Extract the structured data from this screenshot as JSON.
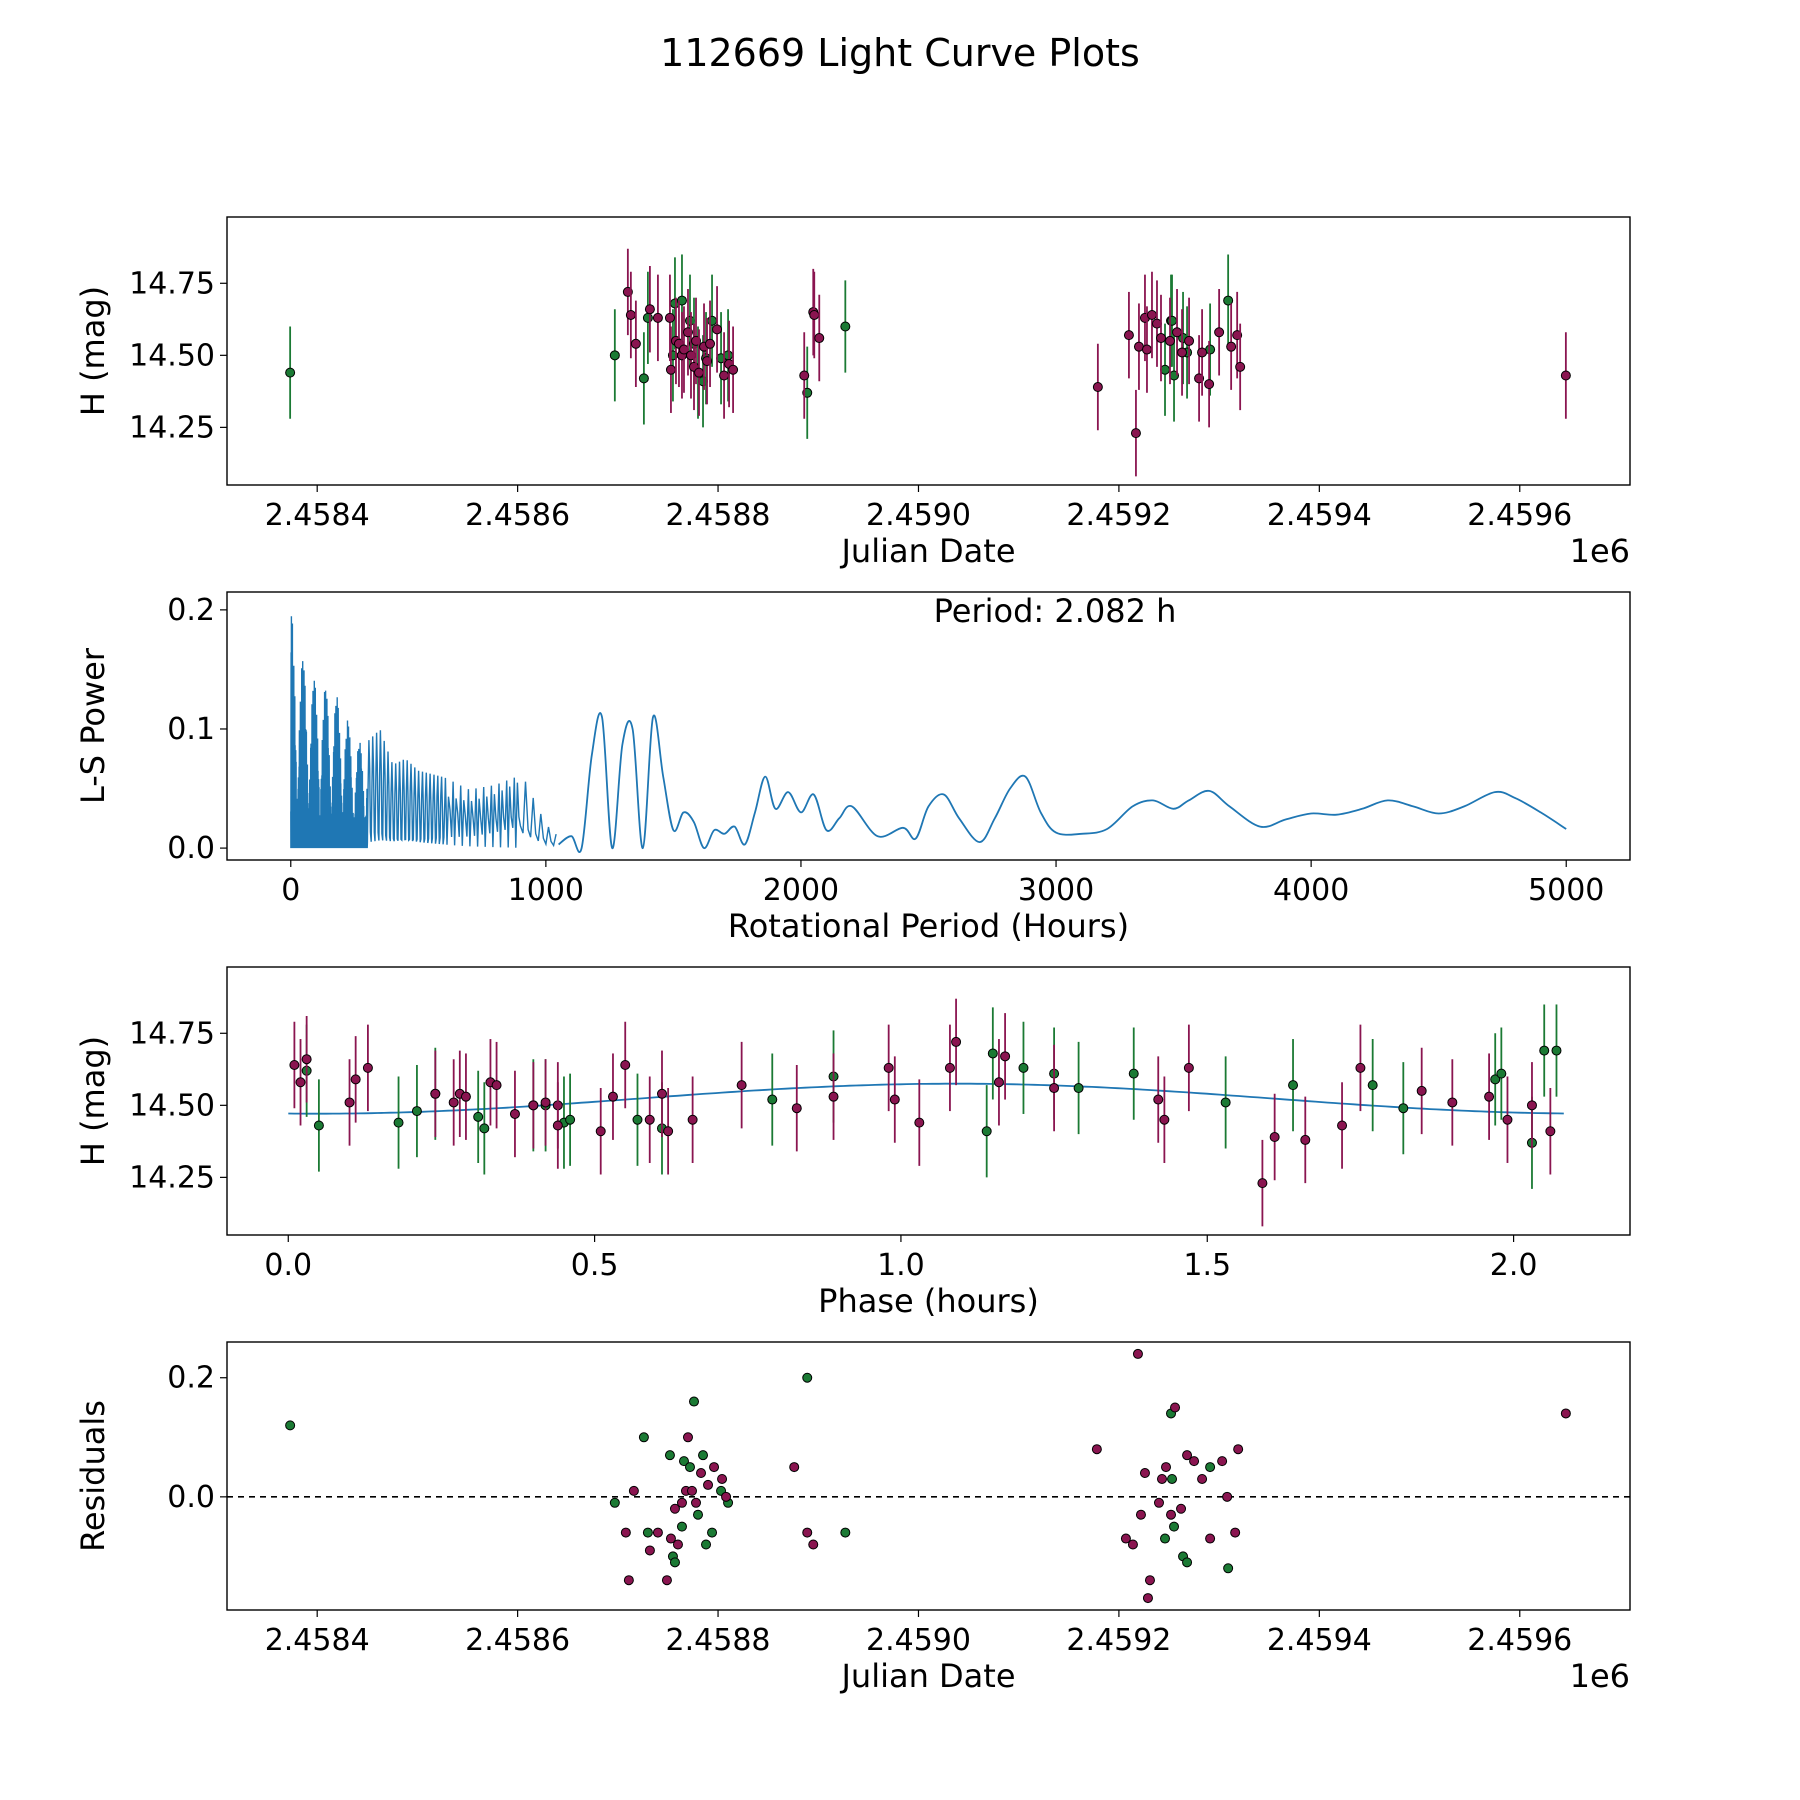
{
  "figure": {
    "title": "112669 Light Curve Plots"
  },
  "colors": {
    "green": "#1b7a34",
    "magenta": "#8a1550",
    "line": "#1f77b4",
    "axis": "#000000"
  },
  "chart_data": [
    {
      "id": "lightcurve",
      "type": "scatter",
      "xlabel": "Julian Date",
      "ylabel": "H (mag)",
      "offset_label": "1e6",
      "xlim": [
        2.45831,
        2.45971
      ],
      "ylim": [
        14.05,
        14.98
      ],
      "xticks": [
        2.4584,
        2.4586,
        2.4588,
        2.459,
        2.4592,
        2.4594,
        2.4596
      ],
      "xtick_labels": [
        "2.4584",
        "2.4586",
        "2.4588",
        "2.4590",
        "2.4592",
        "2.4594",
        "2.4596"
      ],
      "yticks": [
        14.25,
        14.5,
        14.75
      ],
      "ytick_labels": [
        "14.25",
        "14.50",
        "14.75"
      ],
      "series": [
        {
          "name": "green",
          "error": 0.16,
          "x": [
            2.458373,
            2.458697,
            2.458726,
            2.45873,
            2.458755,
            2.458757,
            2.458764,
            2.458772,
            2.458776,
            2.45878,
            2.458785,
            2.458788,
            2.458794,
            2.458803,
            2.45881,
            2.458889,
            2.458927,
            2.459246,
            2.459252,
            2.459253,
            2.459255,
            2.459264,
            2.459268,
            2.459291,
            2.459309
          ],
          "y": [
            14.44,
            14.5,
            14.42,
            14.63,
            14.5,
            14.68,
            14.69,
            14.62,
            14.54,
            14.44,
            14.41,
            14.49,
            14.62,
            14.49,
            14.5,
            14.37,
            14.6,
            14.45,
            14.62,
            14.62,
            14.43,
            14.56,
            14.51,
            14.52,
            14.69
          ]
        },
        {
          "name": "magenta",
          "error": 0.15,
          "x": [
            2.45871,
            2.458713,
            2.458718,
            2.458732,
            2.45874,
            2.458752,
            2.458753,
            2.458758,
            2.458761,
            2.458764,
            2.458766,
            2.45877,
            2.458773,
            2.458776,
            2.458778,
            2.458781,
            2.458786,
            2.458789,
            2.458792,
            2.458799,
            2.458806,
            2.458811,
            2.458815,
            2.458886,
            2.458895,
            2.458896,
            2.458901,
            2.459179,
            2.45921,
            2.459217,
            2.45922,
            2.459226,
            2.459228,
            2.459233,
            2.459238,
            2.459242,
            2.459251,
            2.459258,
            2.459263,
            2.45927,
            2.45928,
            2.459283,
            2.45929,
            2.4593,
            2.459312,
            2.459318,
            2.459321,
            2.459646
          ],
          "y": [
            14.72,
            14.64,
            14.54,
            14.66,
            14.63,
            14.63,
            14.45,
            14.55,
            14.54,
            14.5,
            14.52,
            14.58,
            14.5,
            14.46,
            14.55,
            14.44,
            14.53,
            14.48,
            14.54,
            14.59,
            14.43,
            14.47,
            14.45,
            14.43,
            14.65,
            14.64,
            14.56,
            14.39,
            14.57,
            14.23,
            14.53,
            14.63,
            14.52,
            14.64,
            14.61,
            14.56,
            14.55,
            14.58,
            14.51,
            14.55,
            14.42,
            14.51,
            14.4,
            14.58,
            14.53,
            14.57,
            14.46,
            14.43
          ]
        }
      ]
    },
    {
      "id": "periodogram",
      "type": "line",
      "xlabel": "Rotational Period (Hours)",
      "ylabel": "L-S Power",
      "annotation": "Period: 2.082 h",
      "xlim": [
        -250,
        5250
      ],
      "ylim": [
        -0.01,
        0.215
      ],
      "xticks": [
        0,
        1000,
        2000,
        3000,
        4000,
        5000
      ],
      "xtick_labels": [
        "0",
        "1000",
        "2000",
        "3000",
        "4000",
        "5000"
      ],
      "yticks": [
        0.0,
        0.1,
        0.2
      ],
      "ytick_labels": [
        "0.0",
        "0.1",
        "0.2"
      ],
      "envelope": {
        "x": [
          0,
          20,
          50,
          100,
          150,
          200,
          250,
          300,
          350,
          400,
          450,
          500,
          600,
          700,
          800,
          900,
          1000,
          1050
        ],
        "y": [
          0.205,
          0.17,
          0.16,
          0.14,
          0.135,
          0.125,
          0.09,
          0.09,
          0.1,
          0.07,
          0.075,
          0.065,
          0.06,
          0.05,
          0.055,
          0.065,
          0.02,
          0.01
        ]
      },
      "smooth": {
        "x": [
          1050,
          1100,
          1140,
          1180,
          1220,
          1260,
          1300,
          1340,
          1380,
          1420,
          1460,
          1500,
          1540,
          1580,
          1620,
          1660,
          1700,
          1740,
          1780,
          1820,
          1860,
          1900,
          1950,
          2000,
          2050,
          2100,
          2150,
          2200,
          2300,
          2400,
          2450,
          2500,
          2560,
          2620,
          2700,
          2760,
          2820,
          2880,
          2940,
          3000,
          3100,
          3200,
          3300,
          3380,
          3460,
          3520,
          3600,
          3680,
          3800,
          3900,
          4000,
          4100,
          4200,
          4300,
          4400,
          4500,
          4600,
          4720,
          4800,
          4900,
          5000
        ],
        "y": [
          0.003,
          0.01,
          0.0,
          0.078,
          0.11,
          0.0,
          0.087,
          0.1,
          0.0,
          0.11,
          0.06,
          0.015,
          0.03,
          0.022,
          0.0,
          0.015,
          0.012,
          0.018,
          0.003,
          0.03,
          0.06,
          0.033,
          0.047,
          0.03,
          0.045,
          0.015,
          0.025,
          0.035,
          0.01,
          0.017,
          0.008,
          0.035,
          0.045,
          0.025,
          0.005,
          0.025,
          0.05,
          0.06,
          0.03,
          0.013,
          0.012,
          0.016,
          0.035,
          0.04,
          0.033,
          0.04,
          0.048,
          0.035,
          0.018,
          0.024,
          0.029,
          0.028,
          0.033,
          0.04,
          0.035,
          0.029,
          0.035,
          0.047,
          0.042,
          0.03,
          0.016
        ]
      }
    },
    {
      "id": "phased",
      "type": "scatter",
      "xlabel": "Phase (hours)",
      "ylabel": "H (mag)",
      "xlim": [
        -0.1,
        2.19
      ],
      "ylim": [
        14.05,
        14.98
      ],
      "xticks": [
        0.0,
        0.5,
        1.0,
        1.5,
        2.0
      ],
      "xtick_labels": [
        "0.0",
        "0.5",
        "1.0",
        "1.5",
        "2.0"
      ],
      "yticks": [
        14.25,
        14.5,
        14.75
      ],
      "ytick_labels": [
        "14.25",
        "14.50",
        "14.75"
      ],
      "fit": {
        "mean": 14.523,
        "amplitude": 0.052,
        "peak_phase": 1.09,
        "period": 2.082
      },
      "series": [
        {
          "name": "green",
          "error": 0.16,
          "x": [
            0.03,
            0.05,
            0.18,
            0.21,
            0.24,
            0.31,
            0.32,
            0.4,
            0.42,
            0.45,
            0.46,
            0.57,
            0.61,
            0.79,
            0.89,
            1.14,
            1.15,
            1.2,
            1.25,
            1.29,
            1.38,
            1.53,
            1.64,
            1.77,
            1.82,
            1.97,
            1.98,
            2.03,
            2.05,
            2.07
          ],
          "y": [
            14.62,
            14.43,
            14.44,
            14.48,
            14.54,
            14.46,
            14.42,
            14.5,
            14.5,
            14.44,
            14.45,
            14.45,
            14.42,
            14.52,
            14.6,
            14.41,
            14.68,
            14.63,
            14.61,
            14.56,
            14.61,
            14.51,
            14.57,
            14.57,
            14.49,
            14.59,
            14.61,
            14.37,
            14.69,
            14.69
          ]
        },
        {
          "name": "magenta",
          "error": 0.15,
          "x": [
            0.01,
            0.02,
            0.03,
            0.1,
            0.11,
            0.13,
            0.24,
            0.27,
            0.28,
            0.29,
            0.33,
            0.34,
            0.37,
            0.4,
            0.42,
            0.44,
            0.44,
            0.51,
            0.53,
            0.55,
            0.59,
            0.61,
            0.62,
            0.66,
            0.74,
            0.83,
            0.89,
            0.98,
            0.99,
            1.03,
            1.08,
            1.09,
            1.16,
            1.17,
            1.25,
            1.42,
            1.43,
            1.47,
            1.59,
            1.61,
            1.66,
            1.72,
            1.75,
            1.85,
            1.9,
            1.96,
            1.99,
            2.03,
            2.06
          ],
          "y": [
            14.64,
            14.58,
            14.66,
            14.51,
            14.59,
            14.63,
            14.54,
            14.51,
            14.54,
            14.53,
            14.58,
            14.57,
            14.47,
            14.5,
            14.51,
            14.5,
            14.43,
            14.41,
            14.53,
            14.64,
            14.45,
            14.54,
            14.41,
            14.45,
            14.57,
            14.49,
            14.53,
            14.63,
            14.52,
            14.44,
            14.63,
            14.72,
            14.58,
            14.67,
            14.56,
            14.52,
            14.45,
            14.63,
            14.23,
            14.39,
            14.38,
            14.43,
            14.63,
            14.55,
            14.51,
            14.53,
            14.45,
            14.5,
            14.41
          ]
        }
      ]
    },
    {
      "id": "residuals",
      "type": "scatter",
      "xlabel": "Julian Date",
      "ylabel": "Residuals",
      "offset_label": "1e6",
      "xlim": [
        2.45831,
        2.45971
      ],
      "ylim": [
        -0.19,
        0.26
      ],
      "xticks": [
        2.4584,
        2.4586,
        2.4588,
        2.459,
        2.4592,
        2.4594,
        2.4596
      ],
      "xtick_labels": [
        "2.4584",
        "2.4586",
        "2.4588",
        "2.4590",
        "2.4592",
        "2.4594",
        "2.4596"
      ],
      "yticks": [
        0.0,
        0.2
      ],
      "ytick_labels": [
        "0.0",
        "0.2"
      ],
      "zero_line": 0.0,
      "series": [
        {
          "name": "green",
          "error": 0,
          "x": [
            2.458373,
            2.458697,
            2.458726,
            2.45873,
            2.458752,
            2.458755,
            2.458757,
            2.458764,
            2.458766,
            2.458772,
            2.458776,
            2.45878,
            2.458785,
            2.458788,
            2.458794,
            2.458803,
            2.45881,
            2.458889,
            2.458927,
            2.459246,
            2.459252,
            2.459253,
            2.459255,
            2.459264,
            2.459268,
            2.459291,
            2.459309
          ],
          "y": [
            0.12,
            -0.01,
            0.1,
            -0.06,
            0.07,
            -0.1,
            -0.11,
            -0.05,
            0.06,
            0.05,
            0.16,
            -0.03,
            0.07,
            -0.08,
            -0.06,
            0.01,
            -0.01,
            0.2,
            -0.06,
            -0.07,
            0.14,
            0.03,
            -0.05,
            -0.1,
            -0.11,
            0.05,
            -0.12
          ]
        },
        {
          "name": "magenta",
          "error": 0,
          "x": [
            2.458708,
            2.458711,
            2.458716,
            2.458732,
            2.45874,
            2.458749,
            2.458753,
            2.458757,
            2.45876,
            2.458764,
            2.458768,
            2.45877,
            2.458774,
            2.458778,
            2.458783,
            2.45879,
            2.458796,
            2.458804,
            2.458808,
            2.458876,
            2.458889,
            2.458895,
            2.459178,
            2.459207,
            2.459214,
            2.459219,
            2.459222,
            2.459226,
            2.459229,
            2.459231,
            2.45924,
            2.459243,
            2.459247,
            2.459252,
            2.459256,
            2.459262,
            2.459268,
            2.459275,
            2.459283,
            2.459291,
            2.459303,
            2.459308,
            2.459316,
            2.459319,
            2.459646
          ],
          "y": [
            -0.06,
            -0.14,
            0.01,
            -0.09,
            -0.06,
            -0.14,
            -0.07,
            -0.02,
            -0.08,
            -0.01,
            0.01,
            0.1,
            0.01,
            -0.01,
            0.04,
            0.02,
            0.05,
            0.03,
            0.0,
            0.05,
            -0.06,
            -0.08,
            0.08,
            -0.07,
            -0.08,
            0.24,
            -0.03,
            0.04,
            -0.17,
            -0.14,
            -0.01,
            0.03,
            0.05,
            -0.03,
            0.15,
            -0.02,
            0.07,
            0.06,
            0.03,
            -0.07,
            0.06,
            0.0,
            -0.06,
            0.08,
            0.14
          ]
        }
      ]
    }
  ]
}
